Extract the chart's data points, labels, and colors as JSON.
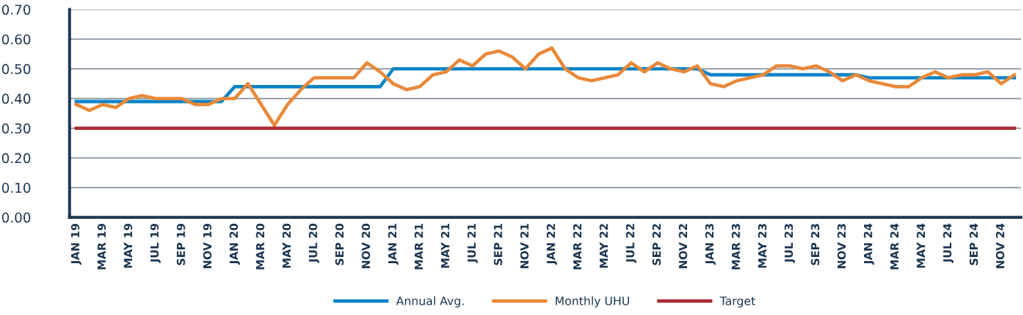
{
  "chart_data": {
    "type": "line",
    "categories": [
      "JAN 19",
      null,
      "MAR 19",
      null,
      "MAY 19",
      null,
      "JUL 19",
      null,
      "SEP 19",
      null,
      "NOV 19",
      null,
      "JAN 20",
      null,
      "MAR 20",
      null,
      "MAY 20",
      null,
      "JUL 20",
      null,
      "SEP 20",
      null,
      "NOV 20",
      null,
      "JAN 21",
      null,
      "MAR 21",
      null,
      "MAY 21",
      null,
      "JUL 21",
      null,
      "SEP 21",
      null,
      "NOV 21",
      null,
      "JAN 22",
      null,
      "MAR 22",
      null,
      "MAY 22",
      null,
      "JUL 22",
      null,
      "SEP 22",
      null,
      "NOV 22",
      null,
      "JAN 23",
      null,
      "MAR 23",
      null,
      "MAY 23",
      null,
      "JUL 23",
      null,
      "SEP 23",
      null,
      "NOV 23",
      null,
      "JAN 24",
      null,
      "MAR 24",
      null,
      "MAY 24",
      null,
      "JUL 24",
      null,
      "SEP 24",
      null,
      "NOV 24",
      null
    ],
    "series": [
      {
        "name": "Annual Avg.",
        "color": "#0a84c8",
        "values": [
          0.39,
          0.39,
          0.39,
          0.39,
          0.39,
          0.39,
          0.39,
          0.39,
          0.39,
          0.39,
          0.39,
          0.39,
          0.44,
          0.44,
          0.44,
          0.44,
          0.44,
          0.44,
          0.44,
          0.44,
          0.44,
          0.44,
          0.44,
          0.44,
          0.5,
          0.5,
          0.5,
          0.5,
          0.5,
          0.5,
          0.5,
          0.5,
          0.5,
          0.5,
          0.5,
          0.5,
          0.5,
          0.5,
          0.5,
          0.5,
          0.5,
          0.5,
          0.5,
          0.5,
          0.5,
          0.5,
          0.5,
          0.5,
          0.48,
          0.48,
          0.48,
          0.48,
          0.48,
          0.48,
          0.48,
          0.48,
          0.48,
          0.48,
          0.48,
          0.48,
          0.47,
          0.47,
          0.47,
          0.47,
          0.47,
          0.47,
          0.47,
          0.47,
          0.47,
          0.47,
          0.47,
          0.47
        ]
      },
      {
        "name": "Monthly UHU",
        "color": "#e8893a",
        "values": [
          0.38,
          0.36,
          0.38,
          0.37,
          0.4,
          0.41,
          0.4,
          0.4,
          0.4,
          0.38,
          0.38,
          0.4,
          0.4,
          0.45,
          0.38,
          0.31,
          0.38,
          0.43,
          0.47,
          0.47,
          0.47,
          0.47,
          0.52,
          0.49,
          0.45,
          0.43,
          0.44,
          0.48,
          0.49,
          0.53,
          0.51,
          0.55,
          0.56,
          0.54,
          0.5,
          0.55,
          0.57,
          0.5,
          0.47,
          0.46,
          0.47,
          0.48,
          0.52,
          0.49,
          0.52,
          0.5,
          0.49,
          0.51,
          0.45,
          0.44,
          0.46,
          0.47,
          0.48,
          0.51,
          0.51,
          0.5,
          0.51,
          0.49,
          0.46,
          0.48,
          0.46,
          0.45,
          0.44,
          0.44,
          0.47,
          0.49,
          0.47,
          0.48,
          0.48,
          0.49,
          0.45,
          0.48
        ]
      },
      {
        "name": "Target",
        "color": "#a82c32",
        "values": [
          0.3,
          0.3,
          0.3,
          0.3,
          0.3,
          0.3,
          0.3,
          0.3,
          0.3,
          0.3,
          0.3,
          0.3,
          0.3,
          0.3,
          0.3,
          0.3,
          0.3,
          0.3,
          0.3,
          0.3,
          0.3,
          0.3,
          0.3,
          0.3,
          0.3,
          0.3,
          0.3,
          0.3,
          0.3,
          0.3,
          0.3,
          0.3,
          0.3,
          0.3,
          0.3,
          0.3,
          0.3,
          0.3,
          0.3,
          0.3,
          0.3,
          0.3,
          0.3,
          0.3,
          0.3,
          0.3,
          0.3,
          0.3,
          0.3,
          0.3,
          0.3,
          0.3,
          0.3,
          0.3,
          0.3,
          0.3,
          0.3,
          0.3,
          0.3,
          0.3,
          0.3,
          0.3,
          0.3,
          0.3,
          0.3,
          0.3,
          0.3,
          0.3,
          0.3,
          0.3,
          0.3,
          0.3
        ]
      }
    ],
    "ylim": [
      0,
      0.7
    ],
    "yticks": [
      {
        "value": 0,
        "label": "0.00"
      },
      {
        "value": 0.1,
        "label": "0.10"
      },
      {
        "value": 0.2,
        "label": "0.20"
      },
      {
        "value": 0.3,
        "label": "0.30"
      },
      {
        "value": 0.4,
        "label": "0.40"
      },
      {
        "value": 0.5,
        "label": "0.50"
      },
      {
        "value": 0.6,
        "label": "0.60"
      },
      {
        "value": 0.7,
        "label": "0.70"
      }
    ],
    "grid": "y",
    "legend": "bottom",
    "marker": "none",
    "line_style": "solid"
  }
}
